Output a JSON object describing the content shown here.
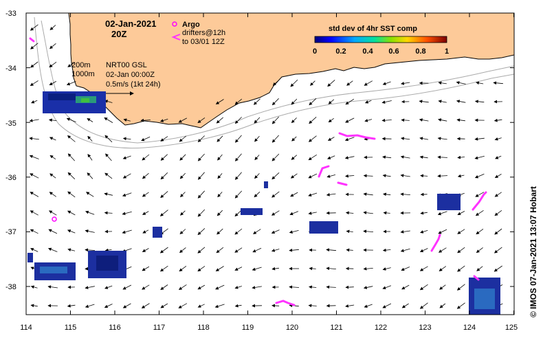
{
  "map": {
    "date": "02-Jan-2021",
    "time": "20Z",
    "argo_label": "Argo",
    "drifters_line1": "drifters@12h",
    "drifters_line2": "to 03/01 12Z",
    "depth_200": "200m",
    "depth_1000": "1000m",
    "product": "NRT00 GSL",
    "product_time": "02-Jan 00:00Z",
    "speed_scale": "0.5m/s (1kt 24h)",
    "colorbar_title": "std dev of 4hr SST comp",
    "colorbar_ticks": [
      "0",
      "0.2",
      "0.4",
      "0.6",
      "0.8",
      "1"
    ],
    "credit": "© IMOS 07-Jan-2021 13:07 Hobart",
    "lon_ticks": [
      "114",
      "115",
      "116",
      "117",
      "118",
      "119",
      "120",
      "121",
      "122",
      "123",
      "124",
      "125"
    ],
    "lat_ticks": [
      "-33",
      "-34",
      "-35",
      "-36",
      "-37",
      "-38"
    ],
    "colors": {
      "land": "#fdca99",
      "argo": "#ff00ff",
      "drifter": "#ff33ff",
      "isobath": "#aaaaaa",
      "sst_low": "#0000ff",
      "sst_high": "#ff0000"
    }
  }
}
